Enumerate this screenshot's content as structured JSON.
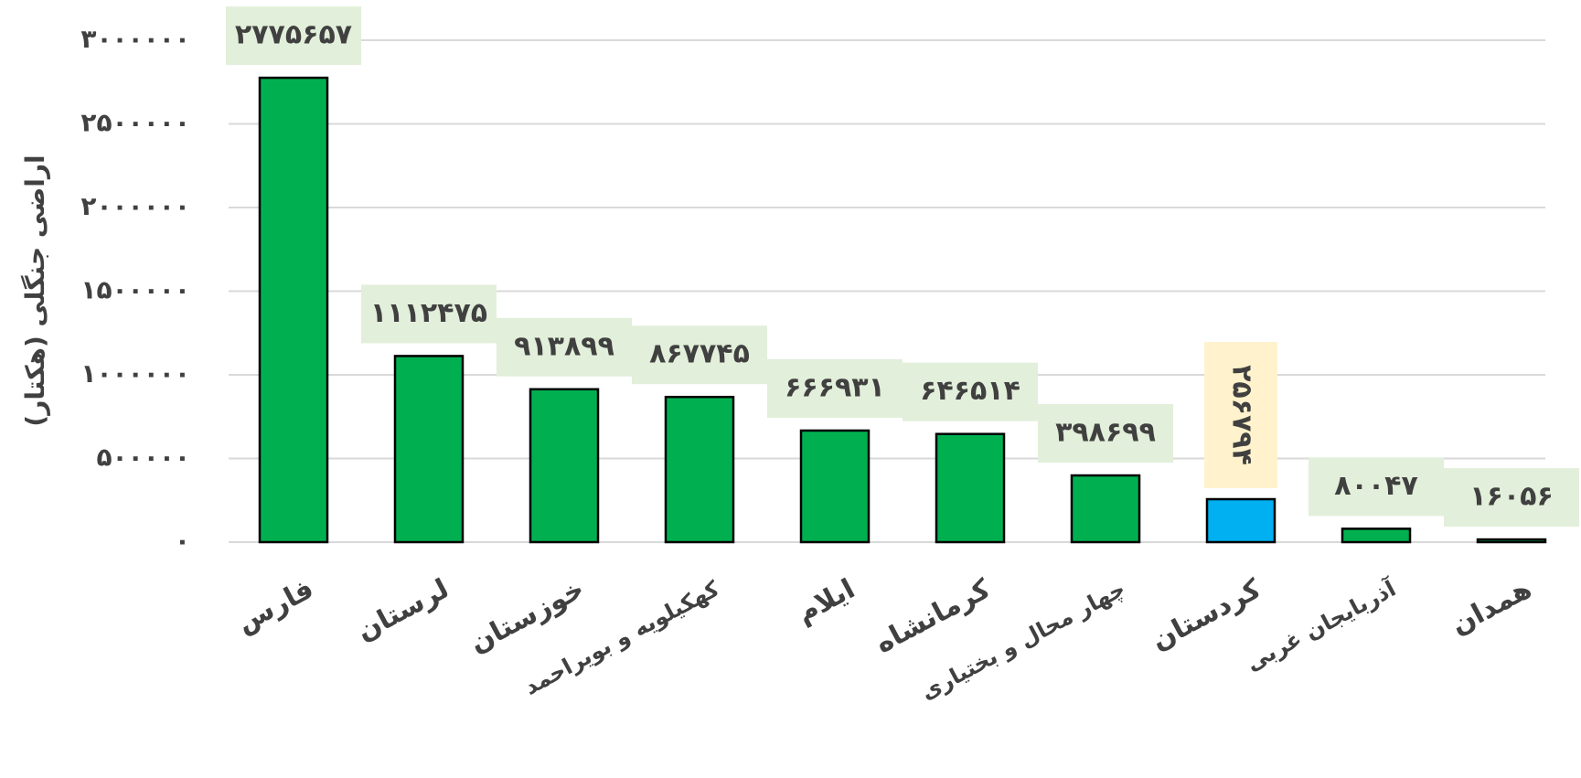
{
  "chart_data": {
    "type": "bar",
    "y_label": "اراضی جنگلی (هکتار)",
    "categories": [
      "فارس",
      "لرستان",
      "خوزستان",
      "کهکیلویه و بویراحمد",
      "ایلام",
      "کرمانشاه",
      "چهار محال و بختیاری",
      "کردستان",
      "آذربایجان غربی",
      "همدان"
    ],
    "values": [
      2775657,
      1112475,
      913899,
      867745,
      666931,
      646514,
      398699,
      256794,
      80047,
      16056
    ],
    "value_labels": [
      "۲۷۷۵۶۵۷",
      "۱۱۱۲۴۷۵",
      "۹۱۳۸۹۹",
      "۸۶۷۷۴۵",
      "۶۶۶۹۳۱",
      "۶۴۶۵۱۴",
      "۳۹۸۶۹۹",
      "۲۵۶۷۹۴",
      "۸۰۰۴۷",
      "۱۶۰۵۶"
    ],
    "colors": [
      "#00b050",
      "#00b050",
      "#00b050",
      "#00b050",
      "#00b050",
      "#00b050",
      "#00b050",
      "#00b0f0",
      "#00b050",
      "#00b050"
    ],
    "ylim": [
      0,
      3000000
    ],
    "yticks": [
      {
        "value": 0,
        "label": "۰"
      },
      {
        "value": 500000,
        "label": "۵۰۰۰۰۰"
      },
      {
        "value": 1000000,
        "label": "۱۰۰۰۰۰۰"
      },
      {
        "value": 1500000,
        "label": "۱۵۰۰۰۰۰"
      },
      {
        "value": 2000000,
        "label": "۲۰۰۰۰۰۰"
      },
      {
        "value": 2500000,
        "label": "۲۵۰۰۰۰۰"
      },
      {
        "value": 3000000,
        "label": "۳۰۰۰۰۰۰"
      }
    ],
    "grid": true
  }
}
